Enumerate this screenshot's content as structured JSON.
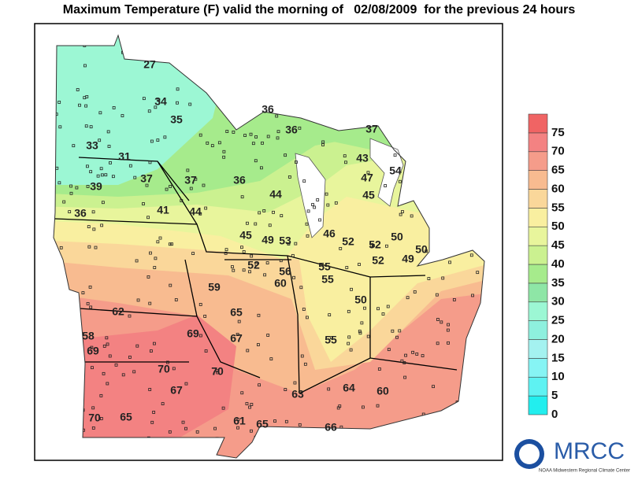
{
  "title": "Maximum Temperature (F) valid the morning of   02/08/2009  for the previous 24 hours",
  "legend": {
    "levels": [
      0,
      5,
      10,
      15,
      20,
      25,
      30,
      35,
      40,
      45,
      50,
      55,
      60,
      65,
      70,
      75
    ],
    "colors": [
      "#22eeee",
      "#5ef2f2",
      "#86f4f4",
      "#a4f2f0",
      "#8ef0de",
      "#9cf7d4",
      "#8ee6a6",
      "#a6eb8c",
      "#cbf190",
      "#e8f59c",
      "#f9efa0",
      "#fad79a",
      "#f8bb90",
      "#f59c8a",
      "#f38282",
      "#f06464"
    ]
  },
  "station_labels": [
    27,
    34,
    35,
    33,
    31,
    37,
    39,
    37,
    36,
    36,
    36,
    37,
    43,
    54,
    47,
    45,
    44,
    41,
    44,
    36,
    45,
    49,
    53,
    46,
    50,
    52,
    52,
    52,
    49,
    50,
    52,
    56,
    55,
    60,
    55,
    59,
    50,
    62,
    65,
    58,
    69,
    69,
    67,
    55,
    70,
    70,
    67,
    63,
    64,
    60,
    70,
    65,
    61,
    65,
    66
  ],
  "logo": {
    "name": "MRCC",
    "subtitle": "NOAA Midwestern Regional Climate Center"
  }
}
